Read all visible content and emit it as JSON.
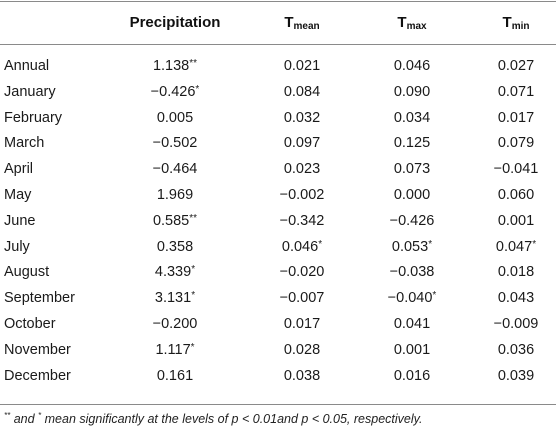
{
  "header": {
    "col_label": "",
    "col_precip": "Precipitation",
    "col_tmean_base": "T",
    "col_tmean_sub": "mean",
    "col_tmax_base": "T",
    "col_tmax_sub": "max",
    "col_tmin_base": "T",
    "col_tmin_sub": "min"
  },
  "rows": [
    {
      "label": "Annual",
      "precip": "1.138",
      "precip_sig": "**",
      "tmean": "0.021",
      "tmean_sig": "",
      "tmax": "0.046",
      "tmax_sig": "",
      "tmin": "0.027",
      "tmin_sig": ""
    },
    {
      "label": "January",
      "precip": "−0.426",
      "precip_sig": "*",
      "tmean": "0.084",
      "tmean_sig": "",
      "tmax": "0.090",
      "tmax_sig": "",
      "tmin": "0.071",
      "tmin_sig": ""
    },
    {
      "label": "February",
      "precip": "0.005",
      "precip_sig": "",
      "tmean": "0.032",
      "tmean_sig": "",
      "tmax": "0.034",
      "tmax_sig": "",
      "tmin": "0.017",
      "tmin_sig": ""
    },
    {
      "label": "March",
      "precip": "−0.502",
      "precip_sig": "",
      "tmean": "0.097",
      "tmean_sig": "",
      "tmax": "0.125",
      "tmax_sig": "",
      "tmin": "0.079",
      "tmin_sig": ""
    },
    {
      "label": "April",
      "precip": "−0.464",
      "precip_sig": "",
      "tmean": "0.023",
      "tmean_sig": "",
      "tmax": "0.073",
      "tmax_sig": "",
      "tmin": "−0.041",
      "tmin_sig": ""
    },
    {
      "label": "May",
      "precip": "1.969",
      "precip_sig": "",
      "tmean": "−0.002",
      "tmean_sig": "",
      "tmax": "0.000",
      "tmax_sig": "",
      "tmin": "0.060",
      "tmin_sig": ""
    },
    {
      "label": "June",
      "precip": "0.585",
      "precip_sig": "**",
      "tmean": "−0.342",
      "tmean_sig": "",
      "tmax": "−0.426",
      "tmax_sig": "",
      "tmin": "0.001",
      "tmin_sig": ""
    },
    {
      "label": "July",
      "precip": "0.358",
      "precip_sig": "",
      "tmean": "0.046",
      "tmean_sig": "*",
      "tmax": "0.053",
      "tmax_sig": "*",
      "tmin": "0.047",
      "tmin_sig": "*"
    },
    {
      "label": "August",
      "precip": "4.339",
      "precip_sig": "*",
      "tmean": "−0.020",
      "tmean_sig": "",
      "tmax": "−0.038",
      "tmax_sig": "",
      "tmin": "0.018",
      "tmin_sig": ""
    },
    {
      "label": "September",
      "precip": "3.131",
      "precip_sig": "*",
      "tmean": "−0.007",
      "tmean_sig": "",
      "tmax": "−0.040",
      "tmax_sig": "*",
      "tmin": "0.043",
      "tmin_sig": ""
    },
    {
      "label": "October",
      "precip": "−0.200",
      "precip_sig": "",
      "tmean": "0.017",
      "tmean_sig": "",
      "tmax": "0.041",
      "tmax_sig": "",
      "tmin": "−0.009",
      "tmin_sig": ""
    },
    {
      "label": "November",
      "precip": "1.117",
      "precip_sig": "*",
      "tmean": "0.028",
      "tmean_sig": "",
      "tmax": "0.001",
      "tmax_sig": "",
      "tmin": "0.036",
      "tmin_sig": ""
    },
    {
      "label": "December",
      "precip": "0.161",
      "precip_sig": "",
      "tmean": "0.038",
      "tmean_sig": "",
      "tmax": "0.016",
      "tmax_sig": "",
      "tmin": "0.039",
      "tmin_sig": ""
    }
  ],
  "footnote": {
    "mark1": "**",
    "text1": " and ",
    "mark2": "*",
    "text2": " mean significantly at the levels of p < 0.01and p < 0.05, respectively."
  }
}
